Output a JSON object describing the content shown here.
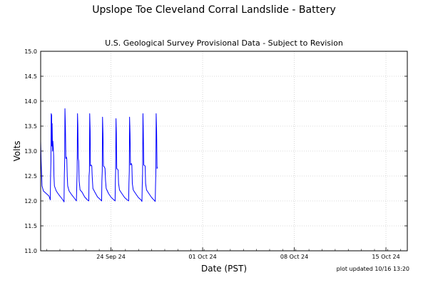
{
  "chart_data": {
    "type": "line",
    "title": "Upslope Toe Cleveland Corral Landslide - Battery",
    "subtitle": "U.S. Geological Survey Provisional Data - Subject to Revision",
    "xlabel": "Date (PST)",
    "ylabel": "Volts",
    "note": "plot updated 10/16 13:20",
    "ylim": [
      11.0,
      15.0
    ],
    "yticks": [
      11.0,
      11.5,
      12.0,
      12.5,
      13.0,
      13.5,
      14.0,
      14.5,
      15.0
    ],
    "xlim_days": [
      0,
      40
    ],
    "xticks": [
      {
        "label": "24 Sep 24",
        "day": 7.67
      },
      {
        "label": "01 Oct 24",
        "day": 17.67
      },
      {
        "label": "08 Oct 24",
        "day": 27.67
      },
      {
        "label": "15 Oct 24",
        "day": 37.67
      }
    ],
    "grid": true,
    "color": "#0000ff",
    "series": [
      {
        "values": [
          [
            0.0,
            13.2
          ],
          [
            0.05,
            12.8
          ],
          [
            0.15,
            12.3
          ],
          [
            0.3,
            12.2
          ],
          [
            0.6,
            12.15
          ],
          [
            0.9,
            12.1
          ],
          [
            1.0,
            12.05
          ],
          [
            1.05,
            12.02
          ],
          [
            1.08,
            12.5
          ],
          [
            1.12,
            12.8
          ],
          [
            1.15,
            13.75
          ],
          [
            1.2,
            13.72
          ],
          [
            1.22,
            13.1
          ],
          [
            1.25,
            13.55
          ],
          [
            1.3,
            13.0
          ],
          [
            1.33,
            13.2
          ],
          [
            1.38,
            13.05
          ],
          [
            1.42,
            12.9
          ],
          [
            1.45,
            12.5
          ],
          [
            1.5,
            12.3
          ],
          [
            1.7,
            12.2
          ],
          [
            2.0,
            12.12
          ],
          [
            2.3,
            12.05
          ],
          [
            2.5,
            12.0
          ],
          [
            2.55,
            11.98
          ],
          [
            2.58,
            12.5
          ],
          [
            2.62,
            12.8
          ],
          [
            2.65,
            13.85
          ],
          [
            2.7,
            13.5
          ],
          [
            2.75,
            12.85
          ],
          [
            2.8,
            12.88
          ],
          [
            2.85,
            12.85
          ],
          [
            2.9,
            12.5
          ],
          [
            2.95,
            12.3
          ],
          [
            3.1,
            12.2
          ],
          [
            3.4,
            12.12
          ],
          [
            3.7,
            12.05
          ],
          [
            3.9,
            12.0
          ],
          [
            3.95,
            12.4
          ],
          [
            3.98,
            12.6
          ],
          [
            4.02,
            13.75
          ],
          [
            4.06,
            13.5
          ],
          [
            4.1,
            12.85
          ],
          [
            4.15,
            12.8
          ],
          [
            4.2,
            12.4
          ],
          [
            4.3,
            12.22
          ],
          [
            4.5,
            12.18
          ],
          [
            4.8,
            12.08
          ],
          [
            5.1,
            12.02
          ],
          [
            5.25,
            12.0
          ],
          [
            5.28,
            12.5
          ],
          [
            5.32,
            12.6
          ],
          [
            5.35,
            13.75
          ],
          [
            5.4,
            13.4
          ],
          [
            5.43,
            12.7
          ],
          [
            5.5,
            12.72
          ],
          [
            5.58,
            12.7
          ],
          [
            5.62,
            12.5
          ],
          [
            5.7,
            12.25
          ],
          [
            5.9,
            12.18
          ],
          [
            6.2,
            12.08
          ],
          [
            6.5,
            12.03
          ],
          [
            6.65,
            12.0
          ],
          [
            6.68,
            12.4
          ],
          [
            6.72,
            12.6
          ],
          [
            6.75,
            13.68
          ],
          [
            6.8,
            13.35
          ],
          [
            6.85,
            12.7
          ],
          [
            6.95,
            12.68
          ],
          [
            7.02,
            12.65
          ],
          [
            7.08,
            12.4
          ],
          [
            7.15,
            12.25
          ],
          [
            7.4,
            12.15
          ],
          [
            7.7,
            12.07
          ],
          [
            8.0,
            12.02
          ],
          [
            8.12,
            12.0
          ],
          [
            8.15,
            12.4
          ],
          [
            8.18,
            12.6
          ],
          [
            8.22,
            13.65
          ],
          [
            8.26,
            13.35
          ],
          [
            8.3,
            12.65
          ],
          [
            8.45,
            12.62
          ],
          [
            8.5,
            12.35
          ],
          [
            8.6,
            12.22
          ],
          [
            8.85,
            12.15
          ],
          [
            9.15,
            12.07
          ],
          [
            9.45,
            12.02
          ],
          [
            9.6,
            12.0
          ],
          [
            9.63,
            12.35
          ],
          [
            9.67,
            12.6
          ],
          [
            9.7,
            13.68
          ],
          [
            9.75,
            13.35
          ],
          [
            9.8,
            12.72
          ],
          [
            9.88,
            12.75
          ],
          [
            9.95,
            12.72
          ],
          [
            10.0,
            12.35
          ],
          [
            10.1,
            12.22
          ],
          [
            10.35,
            12.15
          ],
          [
            10.65,
            12.07
          ],
          [
            10.95,
            12.02
          ],
          [
            11.05,
            11.99
          ],
          [
            11.08,
            12.3
          ],
          [
            11.12,
            12.55
          ],
          [
            11.16,
            13.75
          ],
          [
            11.2,
            13.4
          ],
          [
            11.25,
            12.72
          ],
          [
            11.4,
            12.7
          ],
          [
            11.45,
            12.35
          ],
          [
            11.55,
            12.22
          ],
          [
            11.8,
            12.15
          ],
          [
            12.1,
            12.07
          ],
          [
            12.35,
            12.02
          ],
          [
            12.5,
            11.99
          ],
          [
            12.53,
            12.3
          ],
          [
            12.57,
            12.6
          ],
          [
            12.6,
            13.75
          ],
          [
            12.65,
            13.4
          ],
          [
            12.7,
            12.65
          ],
          [
            12.75,
            12.68
          ]
        ]
      }
    ]
  }
}
